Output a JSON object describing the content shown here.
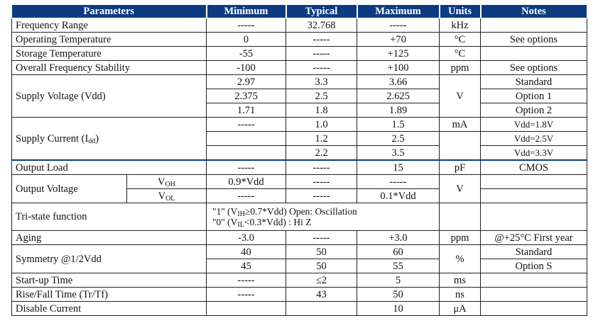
{
  "headers": {
    "parameters": "Parameters",
    "minimum": "Minimum",
    "typical": "Typical",
    "maximum": "Maximum",
    "units": "Units",
    "notes": "Notes"
  },
  "freq": {
    "param": "Frequency Range",
    "min": "-----",
    "typ": "32.768",
    "max": "-----",
    "unit": "kHz",
    "note": ""
  },
  "optemp": {
    "param": "Operating Temperature",
    "min": "0",
    "typ": "-----",
    "max": "+70",
    "unit": "°C",
    "note": "See options"
  },
  "sttemp": {
    "param": "Storage Temperature",
    "min": "-55",
    "typ": "-----",
    "max": "+125",
    "unit": "°C",
    "note": ""
  },
  "stab": {
    "param": "Overall Frequency Stability",
    "min": "-100",
    "typ": "-----",
    "max": "+100",
    "unit": "ppm",
    "note": "See options"
  },
  "vdd": {
    "param": "Supply Voltage (Vdd)",
    "unit": "V",
    "rows": [
      {
        "min": "2.97",
        "typ": "3.3",
        "max": "3.66",
        "note": "Standard"
      },
      {
        "min": "2.375",
        "typ": "2.5",
        "max": "2.625",
        "note": "Option 1"
      },
      {
        "min": "1.71",
        "typ": "1.8",
        "max": "1.89",
        "note": "Option 2"
      }
    ]
  },
  "idd": {
    "param_main": "Supply Current (I",
    "param_sub": "dd",
    "param_end": ")",
    "unit": "mA",
    "rows": [
      {
        "min": "-----",
        "typ": "1.0",
        "max": "1.5",
        "note": "Vdd=1.8V"
      },
      {
        "min": "",
        "typ": "1.2",
        "max": "2.5",
        "note": "Vdd=2.5V"
      },
      {
        "min": "",
        "typ": "2.2",
        "max": "3.5",
        "note": "Vdd=3.3V"
      }
    ]
  },
  "load": {
    "param": "Output Load",
    "min": "-----",
    "typ": "-----",
    "max": "15",
    "unit": "pF",
    "note": "CMOS"
  },
  "vout": {
    "param": "Output Voltage",
    "unit": "V",
    "voh": {
      "main": "V",
      "sub": "OH",
      "min": "0.9*Vdd",
      "typ": "-----",
      "max": "-----"
    },
    "vol": {
      "main": "V",
      "sub": "OL",
      "min": "-----",
      "typ": "-----",
      "max": "0.1*Vdd"
    }
  },
  "tri": {
    "param": "Tri-state function",
    "line1_a": "\"1\" (V",
    "line1_sub": "IH",
    "line1_b": "≥0.7*Vdd) Open: Oscillation",
    "line2_a": "\"0\" (V",
    "line2_sub": "IL",
    "line2_b": "<0.3*Vdd) : Hi Z"
  },
  "aging": {
    "param": "Aging",
    "min": "-3.0",
    "typ": "-----",
    "max": "+3.0",
    "unit": "ppm",
    "note": "@+25°C  First year"
  },
  "sym": {
    "param": "Symmetry @1/2Vdd",
    "unit": "%",
    "rows": [
      {
        "min": "40",
        "typ": "50",
        "max": "60",
        "note": "Standard"
      },
      {
        "min": "45",
        "typ": "50",
        "max": "55",
        "note": "Option S"
      }
    ]
  },
  "startup": {
    "param": "Start-up Time",
    "min": "-----",
    "typ": "≤2",
    "max": "5",
    "unit": "ms",
    "note": ""
  },
  "rise": {
    "param": "Rise/Fall Time (Tr/Tf)",
    "min": "-----",
    "typ": "43",
    "max": "50",
    "unit": "ns",
    "note": ""
  },
  "disable": {
    "param": "Disable Current",
    "min": "",
    "typ": "",
    "max": "10",
    "unit": "μA",
    "note": ""
  }
}
